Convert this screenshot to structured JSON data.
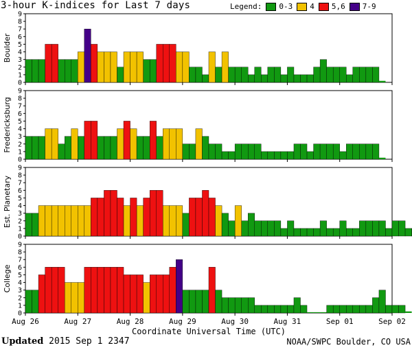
{
  "title": "3-hour K-indices for Last 7 days",
  "legend": {
    "label": "Legend:",
    "items": [
      {
        "label": "0-3",
        "color": "#119911"
      },
      {
        "label": "4",
        "color": "#f2c200"
      },
      {
        "label": "5,6",
        "color": "#ee1111"
      },
      {
        "label": "7-9",
        "color": "#440088"
      }
    ]
  },
  "footer": {
    "updated_label": "Updated",
    "updated_value": "2015 Sep  1 2347",
    "credit": "NOAA/SWPC Boulder, CO USA"
  },
  "chart_data": {
    "type": "bar",
    "xlabel": "Coordinate Universal Time (UTC)",
    "x_ticks": [
      "Aug 26",
      "Aug 27",
      "Aug 28",
      "Aug 29",
      "Aug 30",
      "Aug 31",
      "Sep 01",
      "Sep 02"
    ],
    "ylim": [
      0,
      9
    ],
    "y_ticks": [
      0,
      1,
      2,
      3,
      4,
      5,
      6,
      7,
      8,
      9
    ],
    "series": [
      {
        "name": "Boulder",
        "values": [
          3,
          3,
          3,
          5,
          5,
          3,
          3,
          3,
          4,
          7,
          5,
          4,
          4,
          4,
          2,
          4,
          4,
          4,
          3,
          3,
          5,
          5,
          5,
          4,
          4,
          2,
          2,
          1,
          4,
          2,
          4,
          2,
          2,
          2,
          1,
          2,
          1,
          2,
          2,
          1,
          2,
          1,
          1,
          1,
          2,
          3,
          2,
          2,
          2,
          1,
          2,
          2,
          2,
          2,
          0.2,
          null
        ]
      },
      {
        "name": "Fredericksburg",
        "values": [
          3,
          3,
          3,
          4,
          4,
          2,
          3,
          4,
          3,
          5,
          5,
          3,
          3,
          3,
          4,
          5,
          4,
          3,
          3,
          5,
          3,
          4,
          4,
          4,
          2,
          2,
          4,
          3,
          2,
          2,
          1,
          1,
          2,
          2,
          2,
          2,
          1,
          1,
          1,
          1,
          1,
          2,
          2,
          1,
          2,
          2,
          2,
          2,
          1,
          2,
          2,
          2,
          2,
          2,
          0.2,
          null
        ]
      },
      {
        "name": "Est. Planetary",
        "values": [
          3,
          3,
          4,
          4,
          4,
          4,
          4,
          4,
          4,
          4,
          5,
          5,
          6,
          6,
          5,
          4,
          5,
          4,
          5,
          6,
          6,
          4,
          4,
          4,
          3,
          5,
          5,
          6,
          5,
          4,
          3,
          2,
          4,
          2,
          3,
          2,
          2,
          2,
          2,
          1,
          2,
          1,
          1,
          1,
          1,
          2,
          1,
          1,
          2,
          1,
          1,
          2,
          2,
          2,
          2,
          1,
          2,
          2,
          1,
          1,
          0.2,
          null
        ]
      },
      {
        "name": "College",
        "values": [
          3,
          3,
          5,
          6,
          6,
          6,
          4,
          4,
          4,
          6,
          6,
          6,
          6,
          6,
          6,
          5,
          5,
          5,
          4,
          5,
          5,
          5,
          6,
          7,
          3,
          3,
          3,
          3,
          6,
          3,
          2,
          2,
          2,
          2,
          2,
          1,
          1,
          1,
          1,
          1,
          1,
          2,
          1,
          0.1,
          0.1,
          0.1,
          1,
          1,
          1,
          1,
          1,
          1,
          1,
          2,
          3,
          1,
          1,
          1,
          0.2
        ]
      }
    ]
  }
}
